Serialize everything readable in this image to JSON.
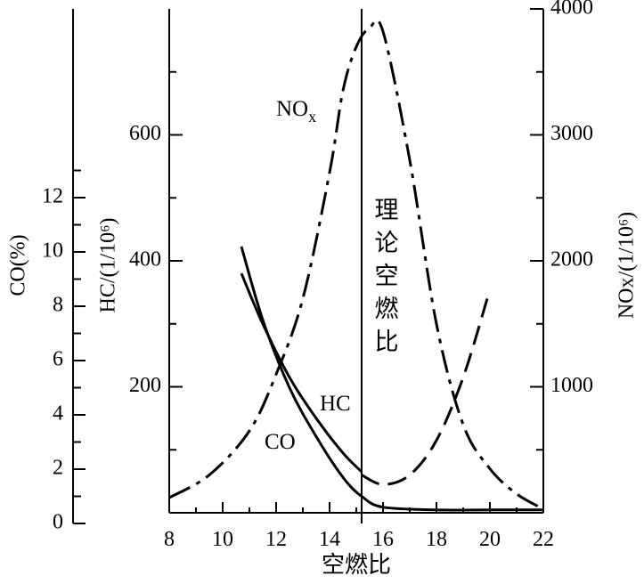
{
  "chart_data": {
    "type": "line",
    "xlabel": "空燃比",
    "xlim": [
      8,
      22
    ],
    "x_ticks": [
      "8",
      "10",
      "12",
      "14",
      "16",
      "18",
      "20",
      "22"
    ],
    "axes": {
      "co": {
        "label": "CO(%)",
        "lim": [
          0,
          14
        ],
        "ticks": [
          "0",
          "2",
          "4",
          "6",
          "8",
          "10",
          "12"
        ]
      },
      "hc": {
        "label": "HC/(1/10⁶)",
        "lim": [
          0,
          800
        ],
        "ticks": [
          "200",
          "400",
          "600"
        ]
      },
      "nox": {
        "label": "NOx/(1/10⁶)",
        "lim": [
          0,
          4000
        ],
        "ticks": [
          "1000",
          "2000",
          "3000",
          "4000"
        ]
      }
    },
    "reference_line": {
      "x": 15.2,
      "label": "理论空燃比"
    },
    "series": [
      {
        "name": "CO",
        "axis": "co",
        "style": "solid",
        "x": [
          10.7,
          11.5,
          12.5,
          13.5,
          14.5,
          15.2,
          16.0,
          18.0,
          20.0,
          22.0
        ],
        "y": [
          10.2,
          7.5,
          5.0,
          3.2,
          1.7,
          1.0,
          0.6,
          0.5,
          0.5,
          0.5
        ]
      },
      {
        "name": "HC",
        "axis": "hc",
        "style": "solid",
        "x": [
          10.7,
          11.5,
          12.5,
          13.5,
          14.5,
          15.2
        ],
        "y": [
          380,
          300,
          215,
          150,
          95,
          65
        ]
      },
      {
        "name": "NOx",
        "axis": "nox",
        "style": "dashdot",
        "x": [
          8.0,
          9.5,
          11.0,
          12.0,
          13.0,
          14.0,
          14.5,
          15.0,
          15.5,
          16.0,
          17.0,
          18.0,
          19.0,
          20.0,
          21.0,
          22.0
        ],
        "y": [
          120,
          300,
          650,
          1100,
          1700,
          2700,
          3350,
          3700,
          3850,
          3820,
          2800,
          1500,
          700,
          350,
          150,
          30
        ]
      },
      {
        "name": "",
        "axis": "hc",
        "style": "dashed",
        "x": [
          15.2,
          16.0,
          17.0,
          18.0,
          19.0,
          19.9
        ],
        "y": [
          60,
          45,
          60,
          115,
          215,
          340
        ]
      }
    ]
  }
}
